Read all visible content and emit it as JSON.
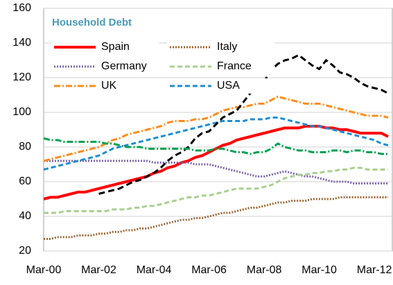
{
  "chart_data": {
    "type": "line",
    "title": "Household Debt",
    "categories": [
      "Mar-00",
      null,
      null,
      null,
      null,
      null,
      null,
      null,
      "Mar-02",
      null,
      null,
      null,
      null,
      null,
      null,
      null,
      "Mar-04",
      null,
      null,
      null,
      null,
      null,
      null,
      null,
      "Mar-06",
      null,
      null,
      null,
      null,
      null,
      null,
      null,
      "Mar-08",
      null,
      null,
      null,
      null,
      null,
      null,
      null,
      "Mar-10",
      null,
      null,
      null,
      null,
      null,
      null,
      null,
      "Mar-12",
      null,
      null
    ],
    "series": [
      {
        "name": "Spain",
        "color": "#ff0000",
        "style": "solid",
        "values": [
          50,
          51,
          51,
          52,
          53,
          54,
          54,
          55,
          56,
          57,
          58,
          59,
          60,
          61,
          62,
          63,
          65,
          66,
          68,
          69,
          71,
          72,
          74,
          75,
          77,
          79,
          81,
          82,
          84,
          85,
          86,
          87,
          88,
          89,
          90,
          91,
          91,
          91,
          92,
          92,
          92,
          91,
          91,
          90,
          90,
          89,
          88,
          88,
          88,
          88,
          86
        ]
      },
      {
        "name": "Italy",
        "color": "#996633",
        "style": "dotted",
        "values": [
          27,
          27,
          28,
          28,
          28,
          29,
          29,
          29,
          30,
          30,
          31,
          31,
          32,
          32,
          33,
          33,
          34,
          35,
          36,
          37,
          38,
          38,
          39,
          39,
          40,
          41,
          42,
          42,
          43,
          44,
          45,
          45,
          46,
          47,
          48,
          48,
          49,
          49,
          49,
          50,
          50,
          50,
          50,
          51,
          51,
          51,
          51,
          51,
          51,
          51,
          51
        ]
      },
      {
        "name": "Germany",
        "color": "#7b62a8",
        "style": "dotted",
        "values": [
          72,
          72,
          72,
          72,
          72,
          72,
          72,
          72,
          72,
          72,
          72,
          72,
          72,
          72,
          72,
          72,
          71,
          71,
          71,
          71,
          71,
          71,
          70,
          70,
          70,
          69,
          68,
          67,
          66,
          65,
          64,
          63,
          63,
          64,
          65,
          66,
          65,
          64,
          63,
          63,
          62,
          61,
          60,
          60,
          60,
          59,
          59,
          59,
          59,
          59,
          59
        ]
      },
      {
        "name": "France",
        "color": "#a9cf8f",
        "style": "dashed",
        "values": [
          42,
          42,
          42,
          43,
          43,
          43,
          43,
          43,
          43,
          43,
          44,
          44,
          44,
          45,
          45,
          46,
          46,
          47,
          48,
          49,
          50,
          51,
          51,
          52,
          52,
          53,
          54,
          55,
          56,
          56,
          56,
          56,
          57,
          58,
          60,
          62,
          63,
          64,
          64,
          65,
          65,
          66,
          66,
          67,
          67,
          68,
          68,
          67,
          67,
          67,
          67
        ]
      },
      {
        "name": "UK",
        "color": "#ff8c1a",
        "style": "dash-dot",
        "values": [
          72,
          73,
          74,
          75,
          76,
          77,
          78,
          79,
          80,
          82,
          84,
          85,
          87,
          88,
          89,
          90,
          91,
          92,
          94,
          95,
          95,
          95,
          96,
          96,
          97,
          99,
          101,
          102,
          103,
          103,
          104,
          105,
          105,
          107,
          109,
          108,
          107,
          106,
          105,
          105,
          105,
          104,
          103,
          102,
          101,
          100,
          99,
          98,
          98,
          98,
          97
        ]
      },
      {
        "name": "USA",
        "color": "#1f8ecf",
        "style": "dashed",
        "values": [
          67,
          68,
          69,
          70,
          71,
          72,
          73,
          74,
          75,
          77,
          79,
          80,
          81,
          82,
          83,
          84,
          85,
          86,
          87,
          88,
          89,
          90,
          91,
          92,
          93,
          94,
          95,
          95,
          95,
          95,
          96,
          96,
          96,
          97,
          97,
          96,
          95,
          94,
          93,
          92,
          92,
          91,
          90,
          89,
          88,
          87,
          86,
          85,
          84,
          82,
          81
        ]
      },
      {
        "color": "#000000",
        "style": "long-dashed",
        "values": [
          null,
          null,
          null,
          null,
          null,
          null,
          null,
          null,
          53,
          54,
          55,
          56,
          58,
          60,
          61,
          63,
          65,
          68,
          72,
          75,
          77,
          80,
          85,
          88,
          89,
          93,
          97,
          99,
          101,
          106,
          111,
          115,
          118,
          124,
          128,
          130,
          131,
          133,
          130,
          127,
          125,
          130,
          127,
          123,
          122,
          120,
          117,
          115,
          114,
          113,
          111
        ]
      },
      {
        "color": "#00a050",
        "style": "dash-dot",
        "values": [
          85,
          84,
          84,
          83,
          83,
          83,
          83,
          83,
          83,
          82,
          82,
          81,
          80,
          80,
          80,
          79,
          79,
          79,
          79,
          79,
          79,
          79,
          78,
          78,
          78,
          79,
          79,
          78,
          77,
          77,
          76,
          77,
          77,
          79,
          82,
          80,
          79,
          78,
          78,
          77,
          77,
          77,
          78,
          78,
          77,
          78,
          78,
          77,
          77,
          76,
          76
        ]
      }
    ],
    "ylim": [
      20,
      160
    ],
    "yticks": [
      20,
      40,
      60,
      80,
      100,
      120,
      140,
      160
    ],
    "grid": true,
    "legend": "top"
  }
}
